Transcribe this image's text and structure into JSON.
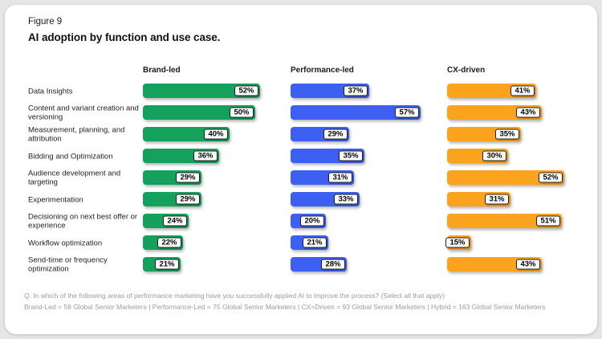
{
  "figure_label": "Figure 9",
  "title": "AI adoption by function and use case.",
  "chart_data": {
    "type": "bar",
    "orientation": "horizontal",
    "value_suffix": "%",
    "xlim": [
      0,
      60
    ],
    "legend_position": "column-headers",
    "grid": false,
    "categories": [
      "Data Insights",
      "Content and variant creation and versioning",
      "Measurement, planning, and attribution",
      "Bidding and Optimization",
      "Audience development and targeting",
      "Experimentation",
      "Decisioning on next best offer or experience",
      "Workflow optimization",
      "Send-time or frequency optimization"
    ],
    "series": [
      {
        "name": "Brand-led",
        "color": "#14A15B",
        "values": [
          52,
          50,
          40,
          36,
          29,
          29,
          24,
          22,
          21
        ]
      },
      {
        "name": "Performance-led",
        "color": "#3D60F2",
        "values": [
          37,
          57,
          29,
          35,
          31,
          33,
          20,
          21,
          28
        ]
      },
      {
        "name": "CX-driven",
        "color": "#FBA31C",
        "values": [
          41,
          43,
          35,
          30,
          52,
          31,
          51,
          15,
          43
        ]
      }
    ]
  },
  "footnote": {
    "question": "Q. In which of the following areas of performance marketing have you successfully applied AI to improve the process? (Select all that apply)",
    "sample": "Brand-Led = 58 Global Senior Marketers | Performance-Led = 75 Global Senior Marketers | CX=Driven = 93 Global Senior Marketers | Hybrid = 163 Global Senior Marketers"
  }
}
